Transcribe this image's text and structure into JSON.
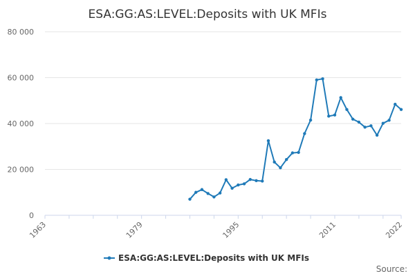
{
  "chart_data": {
    "type": "line",
    "title": "ESA:GG:AS:LEVEL:Deposits with UK MFIs",
    "xlabel": "",
    "ylabel": "",
    "xlim": [
      1963,
      2022
    ],
    "ylim": [
      0,
      80000
    ],
    "x_ticks": [
      1963,
      1979,
      1995,
      2011,
      2022
    ],
    "y_ticks": [
      0,
      20000,
      40000,
      60000,
      80000
    ],
    "y_tick_labels": [
      "0",
      "20 000",
      "40 000",
      "60 000",
      "80 000"
    ],
    "grid": "horizontal",
    "legend": "bottom-center",
    "source_label": "Source:",
    "color": "#1f7ab8",
    "series": [
      {
        "name": "ESA:GG:AS:LEVEL:Deposits with UK MFIs",
        "x": [
          1987,
          1988,
          1989,
          1990,
          1991,
          1992,
          1993,
          1994,
          1995,
          1996,
          1997,
          1998,
          1999,
          2000,
          2001,
          2002,
          2003,
          2004,
          2005,
          2006,
          2007,
          2008,
          2009,
          2010,
          2011,
          2012,
          2013,
          2014,
          2015,
          2016,
          2017,
          2018,
          2019,
          2020,
          2021,
          2022
        ],
        "values": [
          7000,
          10000,
          11200,
          9500,
          8000,
          9700,
          15500,
          11800,
          13200,
          13700,
          15600,
          15100,
          14900,
          32500,
          23200,
          20700,
          24300,
          27200,
          27400,
          35600,
          41500,
          59000,
          59500,
          43200,
          43700,
          51300,
          46100,
          41900,
          40600,
          38400,
          39000,
          34900,
          40100,
          41400,
          48400,
          46100
        ]
      }
    ]
  }
}
